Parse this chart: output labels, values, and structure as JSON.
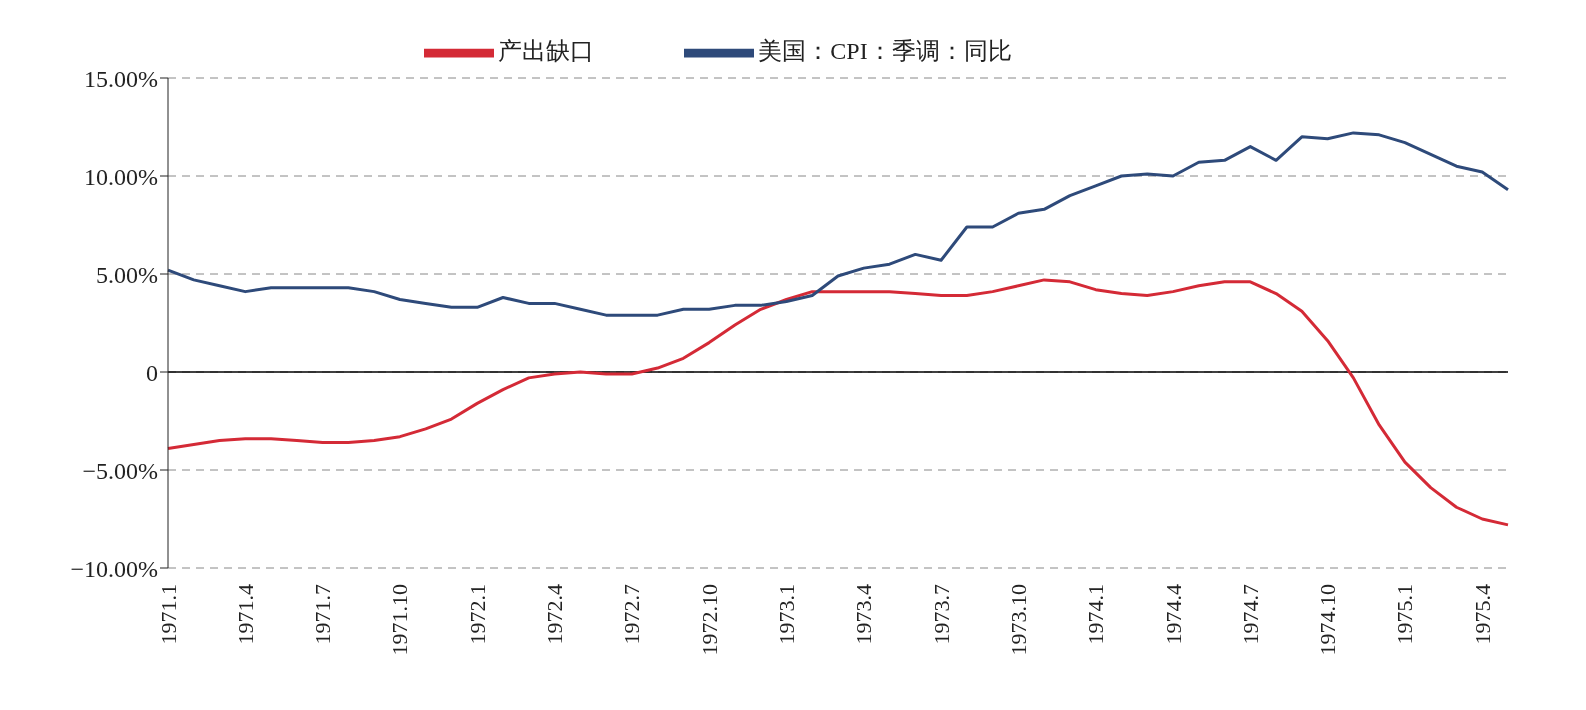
{
  "chart_data": {
    "type": "line",
    "categories": [
      "1971.1",
      null,
      null,
      "1971.4",
      null,
      null,
      "1971.7",
      null,
      null,
      "1971.10",
      null,
      null,
      "1972.1",
      null,
      null,
      "1972.4",
      null,
      null,
      "1972.7",
      null,
      null,
      "1972.10",
      null,
      null,
      "1973.1",
      null,
      null,
      "1973.4",
      null,
      null,
      "1973.7",
      null,
      null,
      "1973.10",
      null,
      null,
      "1974.1",
      null,
      null,
      "1974.4",
      null,
      null,
      "1974.7",
      null,
      null,
      "1974.10",
      null,
      null,
      "1975.1",
      null,
      null,
      "1975.4",
      null
    ],
    "series": [
      {
        "name": "产出缺口",
        "color": "#d42a36",
        "values": [
          -3.9,
          -3.7,
          -3.5,
          -3.4,
          -3.4,
          -3.5,
          -3.6,
          -3.6,
          -3.5,
          -3.3,
          -2.9,
          -2.4,
          -1.6,
          -0.9,
          -0.3,
          -0.1,
          0,
          -0.1,
          -0.1,
          0.2,
          0.7,
          1.5,
          2.4,
          3.2,
          3.7,
          4.1,
          4.1,
          4.1,
          4.1,
          4.0,
          3.9,
          3.9,
          4.1,
          4.4,
          4.7,
          4.6,
          4.2,
          4.0,
          3.9,
          4.1,
          4.4,
          4.6,
          4.6,
          4.0,
          3.1,
          1.6,
          -0.3,
          -2.7,
          -4.6,
          -5.9,
          -6.9,
          -7.5,
          -7.8
        ]
      },
      {
        "name": "美国：CPI：季调：同比",
        "color": "#2e4a7a",
        "values": [
          5.2,
          4.7,
          4.4,
          4.1,
          4.3,
          4.3,
          4.3,
          4.3,
          4.1,
          3.7,
          3.5,
          3.3,
          3.3,
          3.8,
          3.5,
          3.5,
          3.2,
          2.9,
          2.9,
          2.9,
          3.2,
          3.2,
          3.4,
          3.4,
          3.6,
          3.9,
          4.9,
          5.3,
          5.5,
          6.0,
          5.7,
          7.4,
          7.4,
          8.1,
          8.3,
          9.0,
          9.5,
          10.0,
          10.1,
          10.0,
          10.7,
          10.8,
          11.5,
          10.8,
          12.0,
          11.9,
          12.2,
          12.1,
          11.7,
          11.1,
          10.5,
          10.2,
          9.3
        ]
      }
    ],
    "ylim": [
      -10,
      15
    ],
    "yticks": [
      {
        "value": -10,
        "label": "−10.00%"
      },
      {
        "value": -5,
        "label": "−5.00%"
      },
      0,
      {
        "value": 5,
        "label": "5.00%"
      },
      {
        "value": 10,
        "label": "10.00%"
      },
      {
        "value": 15,
        "label": "15.00%"
      }
    ],
    "grid": "y",
    "legend": "top",
    "marker": "none",
    "line_style": "solid",
    "ref_lines": [
      {
        "axis": "y",
        "value": 0,
        "color": "#000000"
      }
    ]
  }
}
